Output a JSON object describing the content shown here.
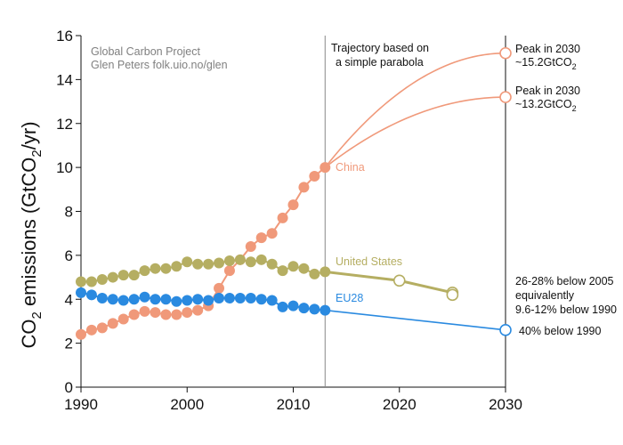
{
  "chart_data": {
    "type": "line",
    "ylabel": {
      "prefix": "CO",
      "sub": "2",
      "suffix": " emissions (GtCO",
      "sub2": "2",
      "end": "/yr)"
    },
    "xlim": [
      1990,
      2030
    ],
    "ylim": [
      0,
      16
    ],
    "x_ticks": [
      1990,
      2000,
      2010,
      2020,
      2030
    ],
    "y_ticks": [
      0,
      2,
      4,
      6,
      8,
      10,
      12,
      14,
      16
    ],
    "credit": [
      "Global Carbon Project",
      "Glen Peters folk.uio.no/glen"
    ],
    "trajectory_note": [
      "Trajectory based on",
      "a simple parabola"
    ],
    "divider_year": 2013,
    "colors": {
      "china": "#f0997a",
      "us": "#b5ae62",
      "eu": "#2a8ae0",
      "divider": "#888888"
    },
    "series": [
      {
        "name": "China",
        "color": "#f0997a",
        "x": [
          1990,
          1991,
          1992,
          1993,
          1994,
          1995,
          1996,
          1997,
          1998,
          1999,
          2000,
          2001,
          2002,
          2003,
          2004,
          2005,
          2006,
          2007,
          2008,
          2009,
          2010,
          2011,
          2012,
          2013
        ],
        "values": [
          2.4,
          2.6,
          2.7,
          2.9,
          3.1,
          3.3,
          3.45,
          3.4,
          3.3,
          3.3,
          3.4,
          3.5,
          3.7,
          4.5,
          5.3,
          5.8,
          6.4,
          6.8,
          7.0,
          7.7,
          8.3,
          9.1,
          9.6,
          10.0
        ]
      },
      {
        "name": "United States",
        "color": "#b5ae62",
        "x": [
          1990,
          1991,
          1992,
          1993,
          1994,
          1995,
          1996,
          1997,
          1998,
          1999,
          2000,
          2001,
          2002,
          2003,
          2004,
          2005,
          2006,
          2007,
          2008,
          2009,
          2010,
          2011,
          2012,
          2013
        ],
        "values": [
          4.8,
          4.8,
          4.9,
          5.0,
          5.1,
          5.1,
          5.3,
          5.4,
          5.4,
          5.5,
          5.7,
          5.6,
          5.6,
          5.65,
          5.75,
          5.8,
          5.7,
          5.8,
          5.6,
          5.3,
          5.5,
          5.4,
          5.15,
          5.25
        ]
      },
      {
        "name": "EU28",
        "color": "#2a8ae0",
        "x": [
          1990,
          1991,
          1992,
          1993,
          1994,
          1995,
          1996,
          1997,
          1998,
          1999,
          2000,
          2001,
          2002,
          2003,
          2004,
          2005,
          2006,
          2007,
          2008,
          2009,
          2010,
          2011,
          2012,
          2013
        ],
        "values": [
          4.3,
          4.2,
          4.05,
          4.0,
          3.95,
          4.0,
          4.1,
          4.0,
          4.0,
          3.9,
          3.95,
          4.0,
          3.95,
          4.05,
          4.05,
          4.05,
          4.05,
          4.0,
          3.95,
          3.65,
          3.7,
          3.6,
          3.55,
          3.5
        ]
      }
    ],
    "projections": [
      {
        "series": "China",
        "shape": "parabola",
        "from": [
          2013,
          10.0
        ],
        "peak": [
          2030,
          15.2
        ],
        "annotation": [
          "Peak in 2030",
          "~15.2GtCO",
          "2"
        ]
      },
      {
        "series": "China",
        "shape": "parabola",
        "from": [
          2013,
          10.0
        ],
        "peak": [
          2030,
          13.2
        ],
        "annotation": [
          "Peak in 2030",
          "~13.2GtCO",
          "2"
        ]
      },
      {
        "series": "United States",
        "shape": "line",
        "points": [
          [
            2013,
            5.25
          ],
          [
            2020,
            4.85
          ],
          [
            2025,
            4.3
          ]
        ],
        "open_markers": [
          [
            2020,
            4.85
          ],
          [
            2025,
            4.3
          ],
          [
            2025,
            4.2
          ]
        ],
        "annotation": [
          "26-28% below 2005",
          "equivalently",
          "9.6-12% below 1990"
        ]
      },
      {
        "series": "EU28",
        "shape": "line",
        "points": [
          [
            2013,
            3.5
          ],
          [
            2030,
            2.6
          ]
        ],
        "open_markers": [
          [
            2030,
            2.6
          ]
        ],
        "annotation": [
          "40% below 1990"
        ]
      }
    ]
  }
}
